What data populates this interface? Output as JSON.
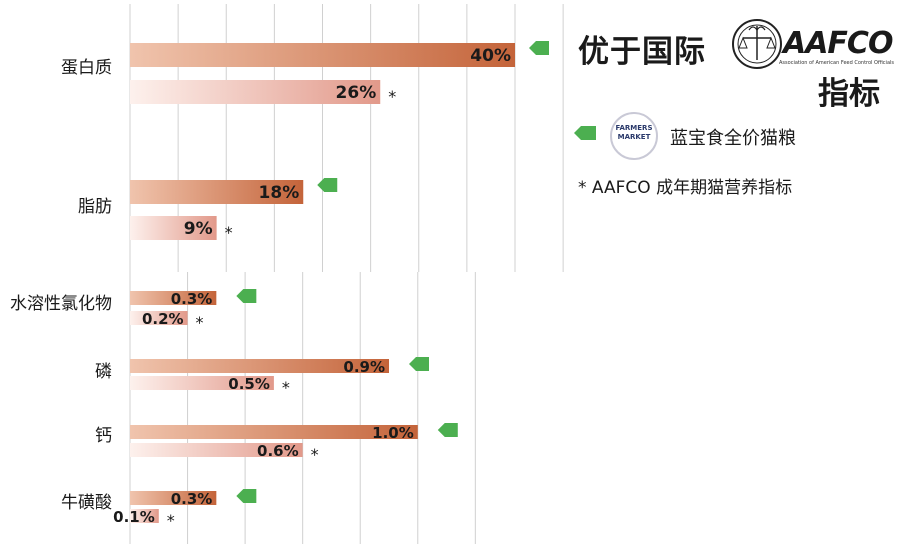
{
  "header": {
    "title": "优于国际",
    "subtitle": "指标",
    "aafco_logo_text": "AAFCO",
    "aafco_logo_small": "Association of American Feed Control Officials"
  },
  "legend": {
    "product_label": "蓝宝食全价猫粮",
    "product_logo_text": "FARMERS MARKET",
    "note": "* AAFCO 成年期猫营养指标"
  },
  "colors": {
    "product_bar": "#c86a3e",
    "product_bar_light": "#e8b59a",
    "aafco_bar": "#e39b8a",
    "aafco_bar_light": "#fbe8e3",
    "marker": "#4caf50",
    "grid": "#d0d0d0"
  },
  "chart_data": [
    {
      "type": "bar",
      "orientation": "horizontal",
      "categories": [
        "蛋白质",
        "脂肪"
      ],
      "series": [
        {
          "name": "蓝宝食全价猫粮",
          "values": [
            40,
            18
          ],
          "labels": [
            "40%",
            "18%"
          ]
        },
        {
          "name": "AAFCO 成年期猫营养指标",
          "values": [
            26,
            9
          ],
          "labels": [
            "26%",
            "9%"
          ]
        }
      ],
      "unit": "%",
      "xlim": [
        0,
        45
      ],
      "grid": true
    },
    {
      "type": "bar",
      "orientation": "horizontal",
      "categories": [
        "水溶性氯化物",
        "磷",
        "钙",
        "牛磺酸"
      ],
      "series": [
        {
          "name": "蓝宝食全价猫粮",
          "values": [
            0.3,
            0.9,
            1.0,
            0.3
          ],
          "labels": [
            "0.3%",
            "0.9%",
            "1.0%",
            "0.3%"
          ]
        },
        {
          "name": "AAFCO 成年期猫营养指标",
          "values": [
            0.2,
            0.5,
            0.6,
            0.1
          ],
          "labels": [
            "0.2%",
            "0.5%",
            "0.6%",
            "0.1%"
          ]
        }
      ],
      "unit": "%",
      "xlim": [
        0,
        1.3
      ],
      "grid": true
    }
  ]
}
